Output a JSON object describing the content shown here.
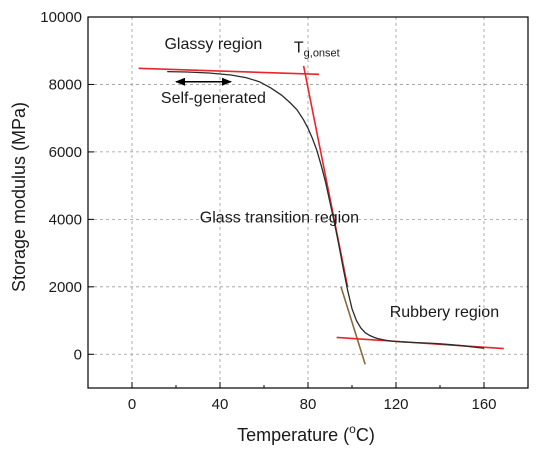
{
  "chart_data": {
    "type": "line",
    "title": "",
    "xlabel": "Temperature (°C)",
    "xlabel_parts": {
      "main": "Temperature (",
      "sup": "o",
      "tail": "C)"
    },
    "ylabel": "Storage modulus (MPa)",
    "xlim": [
      -20,
      180
    ],
    "ylim": [
      -1000,
      10000
    ],
    "xticks": [
      0,
      40,
      80,
      120,
      160
    ],
    "xtick_labels": [
      "0",
      "40",
      "80",
      "120",
      "160"
    ],
    "yticks": [
      0,
      2000,
      4000,
      6000,
      8000,
      10000
    ],
    "ytick_labels": [
      "0",
      "2000",
      "4000",
      "6000",
      "8000",
      "10000"
    ],
    "grid": true,
    "legend": "none",
    "series": [
      {
        "color": "#2b2b2b",
        "x": [
          16,
          25,
          35,
          45,
          52,
          58,
          63,
          68,
          72,
          75,
          78,
          80,
          82,
          84,
          86,
          88,
          90,
          92,
          94,
          96,
          98,
          100,
          102,
          104,
          106,
          108,
          110,
          112,
          115,
          118,
          122,
          128,
          135,
          140,
          145,
          150,
          155,
          160
        ],
        "y": [
          8380,
          8370,
          8340,
          8280,
          8200,
          8080,
          7900,
          7680,
          7450,
          7250,
          6950,
          6700,
          6400,
          6050,
          5600,
          5100,
          4500,
          3900,
          3250,
          2550,
          1900,
          1350,
          1000,
          780,
          640,
          560,
          500,
          460,
          420,
          390,
          370,
          350,
          330,
          310,
          285,
          255,
          215,
          180
        ]
      }
    ],
    "tangent_lines": [
      {
        "color": "#e8262b",
        "x": [
          3,
          85
        ],
        "y": [
          8480,
          8300
        ]
      },
      {
        "color": "#e8262b",
        "x": [
          78,
          98
        ],
        "y": [
          8550,
          2000
        ]
      },
      {
        "color": "#8a6a3a",
        "x": [
          95,
          106
        ],
        "y": [
          2000,
          -300
        ]
      },
      {
        "color": "#e8262b",
        "x": [
          93,
          169
        ],
        "y": [
          500,
          170
        ]
      }
    ],
    "annotations": [
      {
        "text": "Glassy region",
        "x": 37,
        "y": 9050
      },
      {
        "text": "Self-generated",
        "x": 37,
        "y": 7450
      },
      {
        "text": "Glass transition region",
        "x": 67,
        "y": 3900
      },
      {
        "text": "Rubbery region",
        "x": 142,
        "y": 1100
      }
    ],
    "tg_label": {
      "main": "T",
      "sub": "g,onset",
      "x": 84,
      "y": 8950
    },
    "arrow": {
      "x": [
        20,
        45
      ],
      "y": 8080,
      "color": "#000000"
    }
  }
}
